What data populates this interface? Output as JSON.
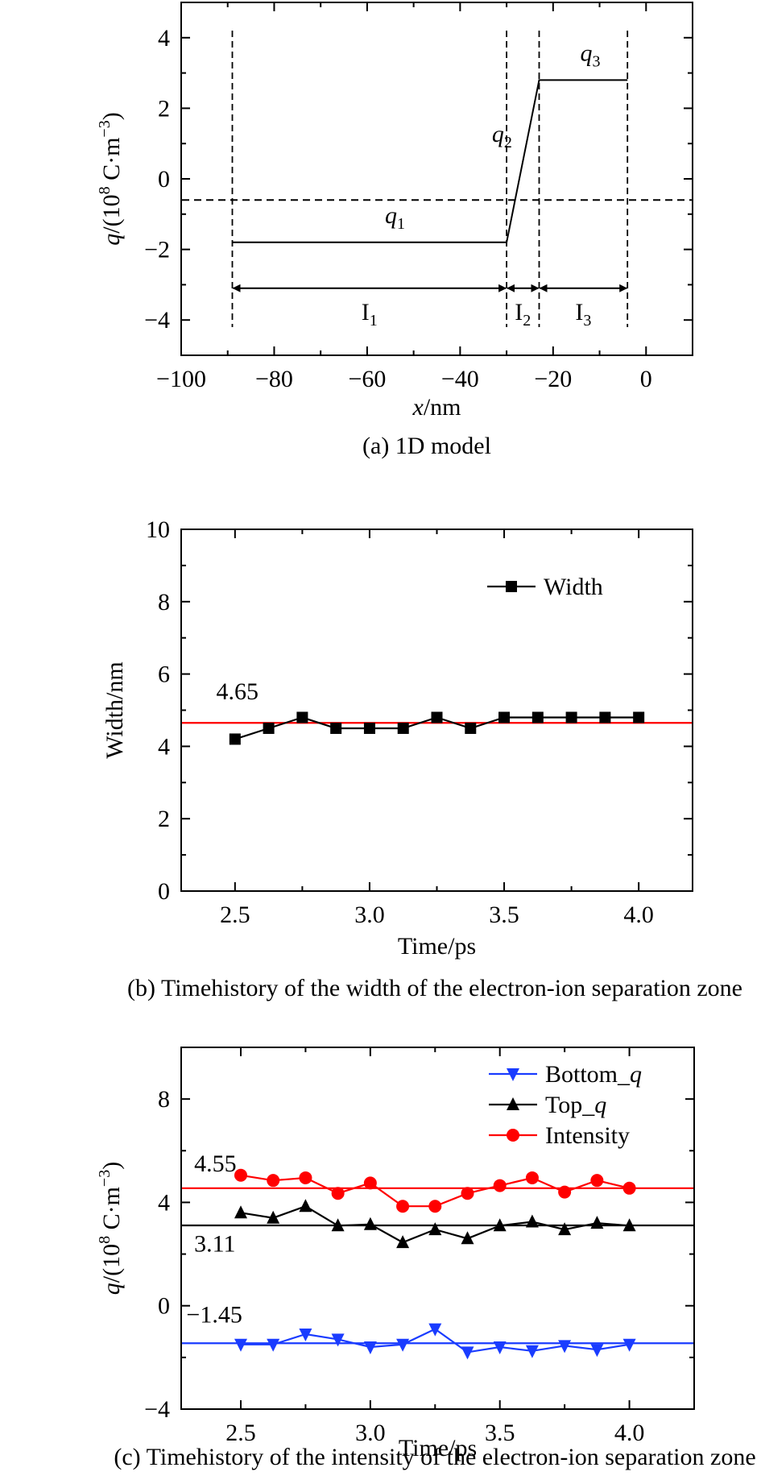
{
  "chart_data": [
    {
      "id": "a",
      "type": "line",
      "caption": "(a) 1D model",
      "xlabel": {
        "italic": "x",
        "rest": "/nm"
      },
      "ylabel": {
        "italic": "q",
        "rest": "/(10",
        "sup1": "8",
        "mid": " C·m",
        "sup2": "−3",
        "end": ")"
      },
      "xlim": [
        -100,
        10
      ],
      "ylim": [
        -5,
        5
      ],
      "xticks": [
        -100,
        -80,
        -60,
        -40,
        -20,
        0
      ],
      "xtick_labels": [
        "−100",
        "−80",
        "−60",
        "−40",
        "−20",
        "0"
      ],
      "yticks": [
        -4,
        -2,
        0,
        2,
        4
      ],
      "ytick_labels": [
        "−4",
        "−2",
        "0",
        "2",
        "4"
      ],
      "profile": {
        "x": [
          -89,
          -30,
          -23,
          -4
        ],
        "y": [
          -1.8,
          -1.8,
          2.8,
          2.8
        ]
      },
      "zero_line_y": -0.6,
      "boundaries": [
        -89,
        -30,
        -23,
        -4
      ],
      "boundary_ylim": [
        -4.2,
        4.2
      ],
      "arrow_y": -3.1,
      "charge_labels": [
        {
          "base": "q",
          "sub": "1",
          "x": -54,
          "y": -1.25
        },
        {
          "base": "q",
          "sub": "2",
          "x": -31,
          "y": 1.05
        },
        {
          "base": "q",
          "sub": "3",
          "x": -12,
          "y": 3.35
        }
      ],
      "region_labels": [
        {
          "base": "I",
          "sub": "1",
          "x": -59.5,
          "y": -4.0
        },
        {
          "base": "I",
          "sub": "2",
          "x": -26.5,
          "y": -4.0
        },
        {
          "base": "I",
          "sub": "3",
          "x": -13.5,
          "y": -4.0
        }
      ]
    },
    {
      "id": "b",
      "type": "line",
      "caption": "(b) Timehistory of the width of the electron-ion separation zone",
      "xlabel": "Time/ps",
      "ylabel": "Width/nm",
      "xlim": [
        2.3,
        4.2
      ],
      "ylim": [
        0,
        10
      ],
      "xticks": [
        2.5,
        3.0,
        3.5,
        4.0
      ],
      "xtick_labels": [
        "2.5",
        "3.0",
        "3.5",
        "4.0"
      ],
      "yticks": [
        0,
        2,
        4,
        6,
        8,
        10
      ],
      "ytick_labels": [
        "0",
        "2",
        "4",
        "6",
        "8",
        "10"
      ],
      "series": [
        {
          "name": "Width",
          "color": "#000000",
          "marker": "square",
          "x": [
            2.5,
            2.625,
            2.75,
            2.875,
            3.0,
            3.125,
            3.25,
            3.375,
            3.5,
            3.625,
            3.75,
            3.875,
            4.0
          ],
          "values": [
            4.2,
            4.5,
            4.8,
            4.5,
            4.5,
            4.5,
            4.8,
            4.5,
            4.8,
            4.8,
            4.8,
            4.8,
            4.8
          ]
        }
      ],
      "reference_lines": [
        {
          "value": 4.65,
          "label": "4.65",
          "color": "#ff0000",
          "label_x": 2.43,
          "label_y": 5.3
        }
      ],
      "legend_position": "top-right"
    },
    {
      "id": "c",
      "type": "line",
      "caption": "(c) Timehistory of the intensity of the electron-ion separation zone",
      "xlabel": "Time/ps",
      "ylabel": {
        "italic": "q",
        "rest": "/(10",
        "sup1": "8",
        "mid": " C·m",
        "sup2": "−3",
        "end": ")"
      },
      "xlim": [
        2.27,
        4.25
      ],
      "ylim": [
        -4,
        10
      ],
      "xticks": [
        2.5,
        3.0,
        3.5,
        4.0
      ],
      "xtick_labels": [
        "2.5",
        "3.0",
        "3.5",
        "4.0"
      ],
      "yticks": [
        -4,
        0,
        4,
        8
      ],
      "ytick_labels": [
        "−4",
        "0",
        "4",
        "8"
      ],
      "series": [
        {
          "name": "Bottom_q",
          "name_base": "Bottom_",
          "name_italic": "q",
          "color": "#1a3cff",
          "marker": "triangle-down",
          "x": [
            2.5,
            2.625,
            2.75,
            2.875,
            3.0,
            3.125,
            3.25,
            3.375,
            3.5,
            3.625,
            3.75,
            3.875,
            4.0
          ],
          "values": [
            -1.5,
            -1.5,
            -1.1,
            -1.3,
            -1.6,
            -1.5,
            -0.9,
            -1.8,
            -1.6,
            -1.75,
            -1.55,
            -1.7,
            -1.5
          ]
        },
        {
          "name": "Top_q",
          "name_base": "Top_",
          "name_italic": "q",
          "color": "#000000",
          "marker": "triangle-up",
          "x": [
            2.5,
            2.625,
            2.75,
            2.875,
            3.0,
            3.125,
            3.25,
            3.375,
            3.5,
            3.625,
            3.75,
            3.875,
            4.0
          ],
          "values": [
            3.6,
            3.4,
            3.85,
            3.1,
            3.15,
            2.45,
            2.95,
            2.6,
            3.1,
            3.25,
            2.95,
            3.2,
            3.1
          ]
        },
        {
          "name": "Intensity",
          "name_base": "Intensity",
          "name_italic": "",
          "color": "#ff0000",
          "marker": "circle",
          "x": [
            2.5,
            2.625,
            2.75,
            2.875,
            3.0,
            3.125,
            3.25,
            3.375,
            3.5,
            3.625,
            3.75,
            3.875,
            4.0
          ],
          "values": [
            5.05,
            4.85,
            4.95,
            4.35,
            4.75,
            3.85,
            3.85,
            4.35,
            4.65,
            4.95,
            4.4,
            4.85,
            4.55
          ]
        }
      ],
      "reference_lines": [
        {
          "value": 4.55,
          "label": "4.55",
          "color": "#ff0000",
          "label_x": 2.32,
          "label_y": 5.2
        },
        {
          "value": 3.11,
          "label": "3.11",
          "color": "#000000",
          "label_x": 2.32,
          "label_y": 2.1
        },
        {
          "value": -1.45,
          "label": "−1.45",
          "color": "#1a3cff",
          "label_x": 2.29,
          "label_y": -0.65
        }
      ],
      "legend_position": "top-right"
    }
  ]
}
